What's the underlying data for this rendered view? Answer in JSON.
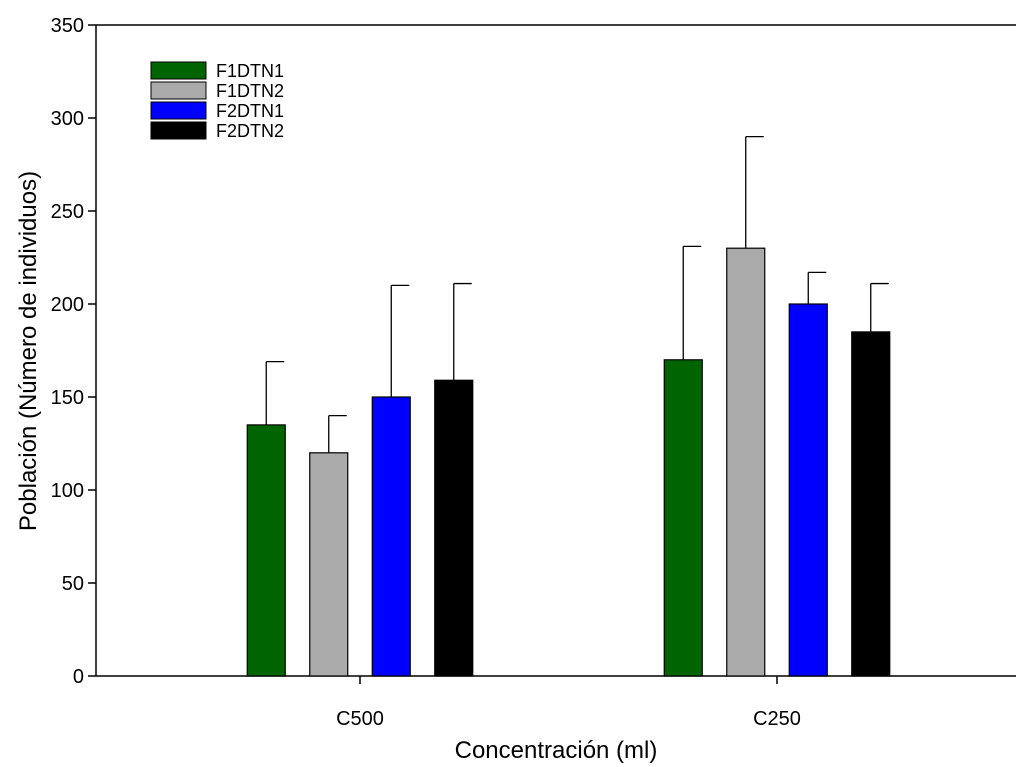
{
  "chart_data": {
    "type": "bar",
    "title": "",
    "xlabel": "Concentración (ml)",
    "ylabel": "Población (Número de individuos)",
    "ylim": [
      0,
      350
    ],
    "yticks": [
      "0",
      "50",
      "100",
      "150",
      "200",
      "250",
      "300",
      "350"
    ],
    "categories": [
      "C500",
      "C250"
    ],
    "legend_position": "top-left",
    "grid": false,
    "series": [
      {
        "name": "F1DTN1",
        "color": "#006400",
        "values": [
          135,
          170
        ],
        "errors": [
          34,
          61
        ]
      },
      {
        "name": "F1DTN2",
        "color": "#aaaaaa",
        "values": [
          120,
          230
        ],
        "errors": [
          20,
          60
        ]
      },
      {
        "name": "F2DTN1",
        "color": "#0000ff",
        "values": [
          150,
          200
        ],
        "errors": [
          60,
          17
        ]
      },
      {
        "name": "F2DTN2",
        "color": "#000000",
        "values": [
          159,
          185
        ],
        "errors": [
          52,
          26
        ]
      }
    ]
  }
}
